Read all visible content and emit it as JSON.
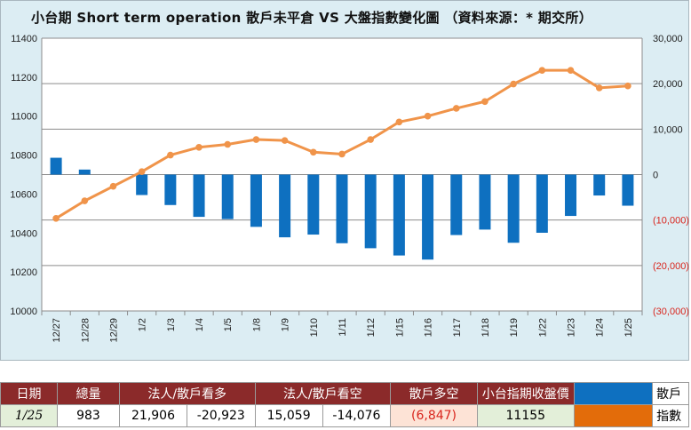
{
  "title": "小台期 Short term operation 散戶未平倉 VS 大盤指數變化圖 （資料來源：* 期交所）",
  "chart_data": {
    "type": "bar+line",
    "categories": [
      "12/27",
      "12/28",
      "12/29",
      "1/2",
      "1/3",
      "1/4",
      "1/5",
      "1/8",
      "1/9",
      "1/10",
      "1/11",
      "1/12",
      "1/15",
      "1/16",
      "1/17",
      "1/18",
      "1/19",
      "1/22",
      "1/23",
      "1/24",
      "1/25"
    ],
    "left_axis": {
      "min": 10000,
      "max": 11400,
      "step": 200,
      "ticks": [
        "10000",
        "10200",
        "10400",
        "10600",
        "10800",
        "11000",
        "11200",
        "11400"
      ]
    },
    "right_axis": {
      "min": -30000,
      "max": 30000,
      "step": 10000,
      "ticks": [
        "(30,000)",
        "(20,000)",
        "(10,000)",
        "0",
        "10,000",
        "20,000",
        "30,000"
      ]
    },
    "series": [
      {
        "name": "散戶",
        "kind": "bar",
        "axis": "right",
        "color": "#0e70c0",
        "values": [
          3700,
          1100,
          null,
          -4500,
          -6700,
          -9300,
          -9800,
          -11500,
          -13800,
          -13200,
          -15100,
          -16200,
          -17800,
          -18700,
          -13300,
          -12100,
          -15000,
          -12800,
          -9100,
          -4600,
          -6847
        ]
      },
      {
        "name": "指數",
        "kind": "line",
        "axis": "left",
        "color": "#f0944a",
        "values": [
          10475,
          10565,
          10640,
          10715,
          10800,
          10840,
          10855,
          10880,
          10875,
          10815,
          10805,
          10880,
          10970,
          11000,
          11040,
          11075,
          11165,
          11235,
          11235,
          11145,
          11155
        ]
      }
    ]
  },
  "table": {
    "headers": [
      "日期",
      "總量",
      "法人/散戶看多",
      "法人/散戶看空",
      "散戶多空",
      "小台指期收盤價"
    ],
    "row": [
      "1/25",
      "983",
      "21,906",
      "-20,923",
      "15,059",
      "-14,076",
      "(6,847)",
      "11155"
    ],
    "legend": [
      {
        "label": "散戶",
        "color": "#0e70c0"
      },
      {
        "label": "指數",
        "color": "#e36c0a"
      }
    ]
  }
}
